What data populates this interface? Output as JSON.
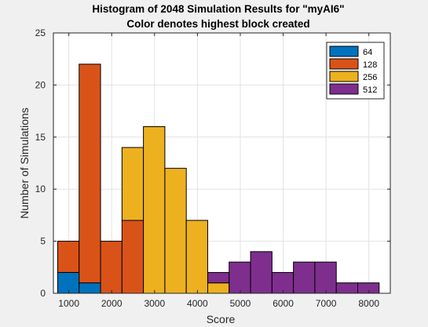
{
  "chart_data": {
    "type": "bar",
    "stacked": true,
    "title": "Histogram of 2048 Simulation Results for \"myAI6\"",
    "subtitle": "Color denotes highest block created",
    "xlabel": "Score",
    "ylabel": "Number of Simulations",
    "xlim": [
      640,
      8500
    ],
    "ylim": [
      0,
      25
    ],
    "xticks": [
      1000,
      2000,
      3000,
      4000,
      5000,
      6000,
      7000,
      8000
    ],
    "yticks": [
      0,
      5,
      10,
      15,
      20,
      25
    ],
    "grid": true,
    "legend_position": "top-right",
    "bin_edges": [
      740,
      1240,
      1740,
      2240,
      2740,
      3240,
      3740,
      4240,
      4740,
      5240,
      5740,
      6240,
      6740,
      7240,
      7740,
      8240
    ],
    "series": [
      {
        "name": "64",
        "color": "#0072bd",
        "values": [
          2,
          1,
          0,
          0,
          0,
          0,
          0,
          0,
          0,
          0,
          0,
          0,
          0,
          0,
          0
        ]
      },
      {
        "name": "128",
        "color": "#d95319",
        "values": [
          3,
          21,
          5,
          7,
          0,
          0,
          0,
          0,
          0,
          0,
          0,
          0,
          0,
          0,
          0
        ]
      },
      {
        "name": "256",
        "color": "#edb120",
        "values": [
          0,
          0,
          0,
          7,
          16,
          12,
          7,
          1,
          0,
          0,
          0,
          0,
          0,
          0,
          0
        ]
      },
      {
        "name": "512",
        "color": "#7e2f8e",
        "values": [
          0,
          0,
          0,
          0,
          0,
          0,
          0,
          1,
          3,
          4,
          2,
          3,
          3,
          1,
          1
        ]
      }
    ]
  }
}
